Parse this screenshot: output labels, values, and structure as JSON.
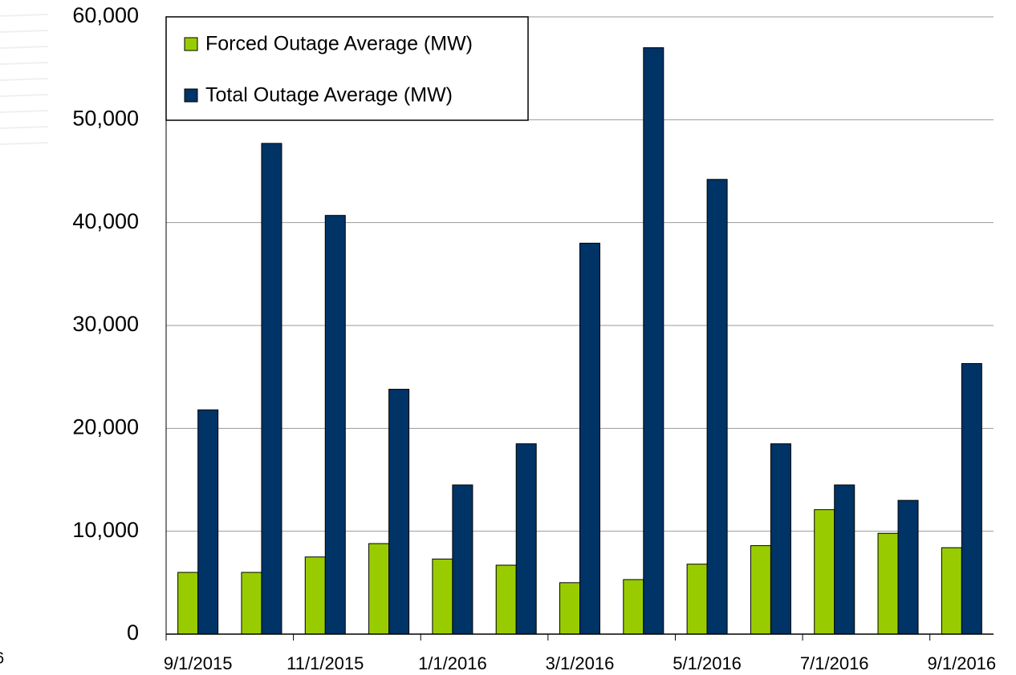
{
  "chart_data": {
    "type": "bar",
    "categories": [
      "9/1/2015",
      null,
      "11/1/2015",
      null,
      "1/1/2016",
      null,
      "3/1/2016",
      null,
      "5/1/2016",
      null,
      "7/1/2016",
      null,
      "9/1/2016"
    ],
    "series": [
      {
        "name": "Forced Outage Average (MW)",
        "color": "#99cc00",
        "values": [
          6000,
          6000,
          7500,
          8800,
          7300,
          6700,
          5000,
          5300,
          6800,
          8600,
          12100,
          9800,
          8400
        ]
      },
      {
        "name": "Total Outage Average (MW)",
        "color": "#003366",
        "values": [
          21800,
          47700,
          40700,
          23800,
          14500,
          18500,
          38000,
          57000,
          44200,
          18500,
          14500,
          13000,
          26300
        ]
      }
    ],
    "ylim": [
      0,
      60000
    ],
    "yticks": [
      0,
      {
        "value": 10000,
        "label": "10,000"
      },
      {
        "value": 20000,
        "label": "20,000"
      },
      {
        "value": 30000,
        "label": "30,000"
      },
      {
        "value": 40000,
        "label": "40,000"
      },
      {
        "value": 50000,
        "label": "50,000"
      },
      {
        "value": 60000,
        "label": "60,000"
      }
    ],
    "grid": true,
    "legend": "top-left",
    "page_number": "6"
  }
}
